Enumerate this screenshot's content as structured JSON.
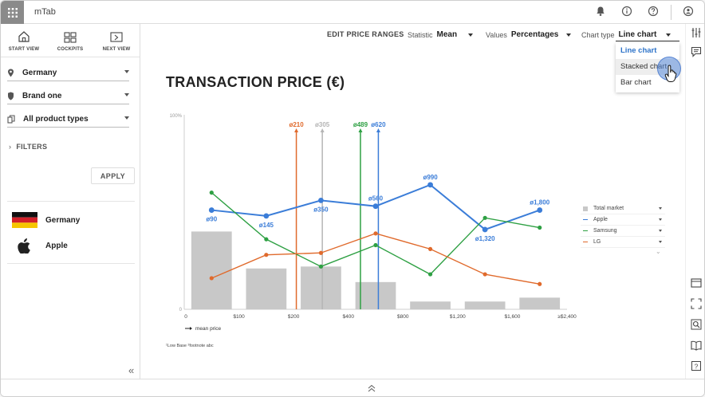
{
  "app": {
    "title": "mTab"
  },
  "nav": {
    "items": [
      {
        "label": "START VIEW"
      },
      {
        "label": "COCKPITS"
      },
      {
        "label": "NEXT VIEW"
      }
    ]
  },
  "filters": {
    "country": "Germany",
    "brand": "Brand one",
    "product": "All product types",
    "filters_label": "FILTERS",
    "apply_label": "APPLY"
  },
  "selection": [
    {
      "name": "Germany",
      "icon": "germany-flag-icon"
    },
    {
      "name": "Apple",
      "icon": "apple-logo-icon"
    }
  ],
  "toolbar": {
    "edit_ranges": "EDIT PRICE RANGES",
    "statistic_label": "Statistic",
    "statistic_value": "Mean",
    "values_label": "Values",
    "values_value": "Percentages",
    "charttype_label": "Chart type",
    "charttype_value": "Line chart"
  },
  "charttype_dropdown": {
    "options": [
      "Line chart",
      "Stacked chart",
      "Bar chart"
    ],
    "selected": "Line chart",
    "hovered": "Stacked chart"
  },
  "chart_title": "TRANSACTION PRICE (€)",
  "chart_data": {
    "type": "line",
    "categories": [
      "0-$100",
      "$100-$200",
      "$200-$400",
      "$400-$800",
      "$800-$1,200",
      "$1,200-$1,600",
      "$1,600-≥$2,400"
    ],
    "x_tick_labels": [
      "0",
      "$100",
      "$200",
      "$400",
      "$800",
      "$1,200",
      "$1,600",
      "≥$2,400"
    ],
    "y_tick_labels": [
      "0",
      "100%"
    ],
    "ylim": [
      0,
      100
    ],
    "bars": {
      "name": "Total market",
      "values": [
        40,
        21,
        22,
        14,
        4,
        4,
        6
      ]
    },
    "series": [
      {
        "name": "Apple",
        "values": [
          51,
          48,
          56,
          53,
          64,
          41,
          51
        ],
        "point_labels": [
          "ø90",
          "ø145",
          "ø350",
          "ø560",
          "ø990",
          "ø1,320",
          "ø1,800"
        ]
      },
      {
        "name": "Samsung",
        "values": [
          60,
          36,
          22,
          33,
          18,
          47,
          42
        ]
      },
      {
        "name": "LG",
        "values": [
          16,
          28,
          29,
          39,
          31,
          18,
          13
        ]
      }
    ],
    "mean_lines": [
      {
        "name": "LG",
        "label": "ø210",
        "x": 210
      },
      {
        "name": "Total market",
        "label": "ø305",
        "x": 305
      },
      {
        "name": "Samsung",
        "label": "ø489",
        "x": 489
      },
      {
        "name": "Apple",
        "label": "ø620",
        "x": 620
      }
    ],
    "mean_price_label": "mean price",
    "footnote": "¹Low Base ²footnote abc"
  },
  "legend": {
    "items": [
      {
        "label": "Total market"
      },
      {
        "label": "Apple"
      },
      {
        "label": "Samsung"
      },
      {
        "label": "LG"
      }
    ]
  },
  "colors": {
    "apple": "#3b7dd8",
    "samsung": "#2ea043",
    "lg": "#e06a2c",
    "total": "#c8c8c8",
    "accent": "#2f74c9"
  }
}
